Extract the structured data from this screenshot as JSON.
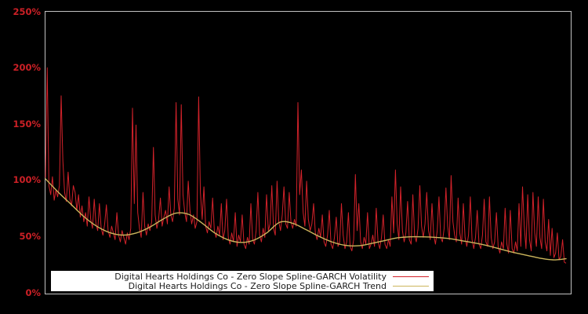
{
  "chart": {
    "background_color": "#000000",
    "plot_border_color": "#c2c2c2",
    "y_axis": {
      "label_color": "#cc2026",
      "tick_labels_top_to_bottom": [
        "250%",
        "200%",
        "150%",
        "100%",
        "50%",
        "0%"
      ]
    }
  },
  "chart_data": {
    "type": "line",
    "title": "",
    "xlabel": "",
    "ylabel": "",
    "unit": "%",
    "ylim": [
      0,
      250
    ],
    "grid": false,
    "x_axis_labels": "none",
    "legend_position": "bottom-inside-white-box",
    "series": [
      {
        "name": "Digital Hearts Holdings Co - Zero Slope Spline-GARCH Volatility",
        "color": "#d2222a",
        "style": "jagged",
        "values": [
          103,
          201,
          96,
          88,
          104,
          83,
          92,
          86,
          96,
          176,
          118,
          90,
          82,
          108,
          84,
          78,
          96,
          90,
          74,
          88,
          68,
          78,
          64,
          72,
          60,
          86,
          66,
          58,
          84,
          62,
          56,
          80,
          58,
          52,
          62,
          79,
          56,
          50,
          60,
          54,
          48,
          72,
          52,
          46,
          56,
          50,
          44,
          54,
          48,
          58,
          165,
          80,
          150,
          72,
          58,
          50,
          90,
          60,
          52,
          62,
          56,
          64,
          130,
          70,
          58,
          66,
          85,
          60,
          68,
          74,
          62,
          95,
          70,
          64,
          76,
          170,
          84,
          70,
          168,
          88,
          72,
          64,
          100,
          74,
          62,
          70,
          58,
          64,
          175,
          90,
          66,
          95,
          60,
          54,
          64,
          58,
          85,
          56,
          50,
          60,
          52,
          80,
          48,
          56,
          84,
          50,
          44,
          54,
          46,
          72,
          42,
          52,
          46,
          70,
          44,
          40,
          50,
          44,
          80,
          48,
          44,
          56,
          90,
          52,
          46,
          58,
          50,
          88,
          56,
          62,
          96,
          58,
          52,
          100,
          64,
          56,
          70,
          95,
          62,
          58,
          90,
          64,
          58,
          66,
          60,
          170,
          88,
          110,
          72,
          60,
          100,
          66,
          56,
          62,
          80,
          54,
          48,
          58,
          50,
          70,
          46,
          42,
          52,
          74,
          44,
          40,
          50,
          68,
          42,
          46,
          80,
          52,
          40,
          46,
          72,
          42,
          38,
          48,
          106,
          56,
          80,
          46,
          40,
          50,
          44,
          72,
          40,
          44,
          52,
          42,
          76,
          46,
          40,
          50,
          70,
          44,
          40,
          48,
          42,
          86,
          54,
          110,
          62,
          48,
          95,
          56,
          46,
          54,
          82,
          48,
          44,
          88,
          52,
          46,
          58,
          96,
          60,
          50,
          62,
          90,
          56,
          48,
          80,
          52,
          44,
          56,
          86,
          50,
          46,
          58,
          94,
          60,
          48,
          105,
          64,
          52,
          46,
          85,
          54,
          44,
          80,
          50,
          42,
          52,
          86,
          48,
          40,
          50,
          74,
          44,
          40,
          52,
          84,
          46,
          42,
          86,
          50,
          40,
          46,
          72,
          42,
          36,
          46,
          40,
          76,
          44,
          36,
          74,
          40,
          36,
          46,
          38,
          80,
          42,
          95,
          60,
          40,
          88,
          48,
          38,
          90,
          54,
          42,
          86,
          50,
          40,
          84,
          46,
          38,
          66,
          34,
          58,
          32,
          36,
          54,
          30,
          33,
          48,
          28,
          27
        ]
      },
      {
        "name": "Digital Hearts Holdings Co - Zero Slope Spline-GARCH Trend",
        "color": "#ccb65c",
        "style": "smooth",
        "values": [
          102,
          90,
          79,
          68,
          59.5,
          54,
          52,
          54,
          59,
          66,
          71.5,
          70.5,
          63,
          54,
          48,
          45.5,
          47.5,
          54,
          63.5,
          62.5,
          57,
          51,
          46,
          43,
          42.5,
          44.5,
          47,
          49.5,
          50.5,
          50.5,
          50,
          49,
          47,
          45,
          42.5,
          39.5,
          36.5,
          34,
          31.5,
          30,
          31
        ]
      }
    ]
  }
}
